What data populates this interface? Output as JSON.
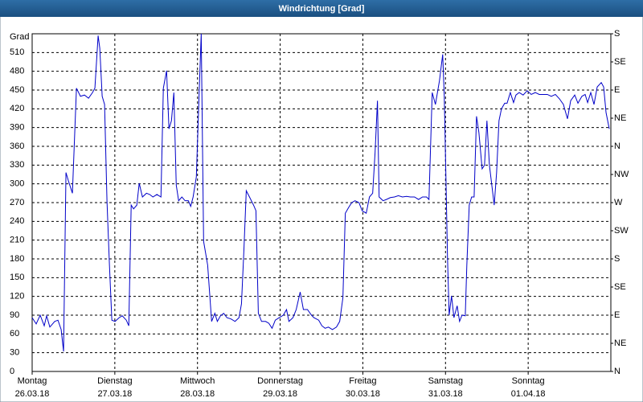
{
  "chart_data": {
    "type": "line",
    "title": "Windrichtung [Grad]",
    "y_label": "Grad",
    "color": "#0000c8",
    "xlim": [
      0,
      7
    ],
    "xticks": [
      {
        "value": 0,
        "label": "Montag"
      },
      {
        "value": 1,
        "label": "Dienstag"
      },
      {
        "value": 2,
        "label": "Mittwoch"
      },
      {
        "value": 3,
        "label": "Donnerstag"
      },
      {
        "value": 4,
        "label": "Freitag"
      },
      {
        "value": 5,
        "label": "Samstag"
      },
      {
        "value": 6,
        "label": "Sonntag"
      }
    ],
    "xtick_dates": [
      "26.03.18",
      "27.03.18",
      "28.03.18",
      "29.03.18",
      "30.03.18",
      "31.03.18",
      "01.04.18"
    ],
    "ylim": [
      0,
      540
    ],
    "yticks": [
      0,
      30,
      60,
      90,
      120,
      150,
      180,
      210,
      240,
      270,
      300,
      330,
      360,
      390,
      420,
      450,
      480,
      510
    ],
    "y2lim": [
      0,
      540
    ],
    "y2ticks": [
      {
        "value": 0,
        "label": "N"
      },
      {
        "value": 45,
        "label": "NE"
      },
      {
        "value": 90,
        "label": "E"
      },
      {
        "value": 135,
        "label": "SE"
      },
      {
        "value": 180,
        "label": "S"
      },
      {
        "value": 225,
        "label": "SW"
      },
      {
        "value": 270,
        "label": "W"
      },
      {
        "value": 315,
        "label": "NW"
      },
      {
        "value": 360,
        "label": "N"
      },
      {
        "value": 405,
        "label": "NE"
      },
      {
        "value": 450,
        "label": "E"
      },
      {
        "value": 495,
        "label": "SE"
      },
      {
        "value": 540,
        "label": "S"
      }
    ],
    "grid": true,
    "x": [
      0,
      0.049,
      0.097,
      0.146,
      0.175,
      0.214,
      0.273,
      0.312,
      0.351,
      0.38,
      0.409,
      0.438,
      0.487,
      0.536,
      0.584,
      0.633,
      0.682,
      0.73,
      0.759,
      0.798,
      0.818,
      0.847,
      0.876,
      0.905,
      0.935,
      0.964,
      1.003,
      1.052,
      1.09,
      1.139,
      1.169,
      1.198,
      1.227,
      1.266,
      1.295,
      1.334,
      1.383,
      1.422,
      1.461,
      1.509,
      1.558,
      1.587,
      1.626,
      1.655,
      1.685,
      1.714,
      1.743,
      1.772,
      1.811,
      1.85,
      1.889,
      1.918,
      1.947,
      1.986,
      2.025,
      2.045,
      2.074,
      2.123,
      2.171,
      2.21,
      2.24,
      2.278,
      2.317,
      2.356,
      2.405,
      2.454,
      2.502,
      2.532,
      2.561,
      2.59,
      2.629,
      2.678,
      2.707,
      2.736,
      2.775,
      2.824,
      2.863,
      2.902,
      2.941,
      2.989,
      3.038,
      3.077,
      3.106,
      3.155,
      3.194,
      3.242,
      3.281,
      3.33,
      3.379,
      3.408,
      3.466,
      3.505,
      3.544,
      3.583,
      3.632,
      3.681,
      3.72,
      3.759,
      3.788,
      3.827,
      3.866,
      3.905,
      3.953,
      3.992,
      4.041,
      4.08,
      4.119,
      4.148,
      4.177,
      4.197,
      4.245,
      4.284,
      4.333,
      4.382,
      4.43,
      4.479,
      4.528,
      4.576,
      4.625,
      4.674,
      4.722,
      4.771,
      4.8,
      4.839,
      4.878,
      4.927,
      4.966,
      4.985,
      5.005,
      5.024,
      5.044,
      5.073,
      5.102,
      5.141,
      5.17,
      5.2,
      5.239,
      5.258,
      5.287,
      5.316,
      5.346,
      5.375,
      5.404,
      5.443,
      5.472,
      5.501,
      5.531,
      5.56,
      5.589,
      5.618,
      5.647,
      5.677,
      5.716,
      5.745,
      5.784,
      5.823,
      5.852,
      5.891,
      5.939,
      5.988,
      6.037,
      6.086,
      6.134,
      6.183,
      6.232,
      6.28,
      6.329,
      6.378,
      6.426,
      6.475,
      6.514,
      6.563,
      6.602,
      6.65,
      6.689,
      6.719,
      6.757,
      6.796,
      6.835,
      6.884,
      6.913,
      6.942,
      6.981
    ],
    "values": [
      86,
      76,
      90,
      73,
      89,
      71,
      80,
      82,
      67,
      32,
      318,
      305,
      285,
      453,
      440,
      442,
      437,
      446,
      453,
      537,
      517,
      440,
      427,
      273,
      170,
      82,
      80,
      86,
      89,
      82,
      73,
      266,
      260,
      266,
      301,
      279,
      285,
      283,
      279,
      283,
      279,
      453,
      481,
      388,
      401,
      446,
      298,
      273,
      279,
      273,
      273,
      264,
      279,
      311,
      465,
      540,
      208,
      170,
      80,
      93,
      80,
      89,
      93,
      86,
      84,
      80,
      86,
      108,
      193,
      289,
      279,
      266,
      257,
      93,
      80,
      80,
      77,
      69,
      82,
      86,
      90,
      99,
      80,
      86,
      99,
      127,
      99,
      99,
      90,
      86,
      82,
      73,
      69,
      71,
      67,
      71,
      80,
      118,
      253,
      262,
      270,
      273,
      270,
      257,
      253,
      279,
      285,
      350,
      433,
      279,
      273,
      275,
      278,
      279,
      281,
      279,
      280,
      279,
      279,
      275,
      279,
      279,
      275,
      446,
      427,
      465,
      507,
      440,
      311,
      183,
      90,
      121,
      86,
      105,
      80,
      90,
      89,
      170,
      266,
      279,
      279,
      408,
      382,
      324,
      330,
      401,
      330,
      298,
      266,
      318,
      401,
      420,
      429,
      429,
      446,
      430,
      442,
      446,
      442,
      449,
      443,
      446,
      443,
      443,
      443,
      440,
      443,
      436,
      427,
      404,
      433,
      442,
      429,
      440,
      443,
      430,
      446,
      427,
      455,
      462,
      455,
      414,
      388
    ]
  }
}
